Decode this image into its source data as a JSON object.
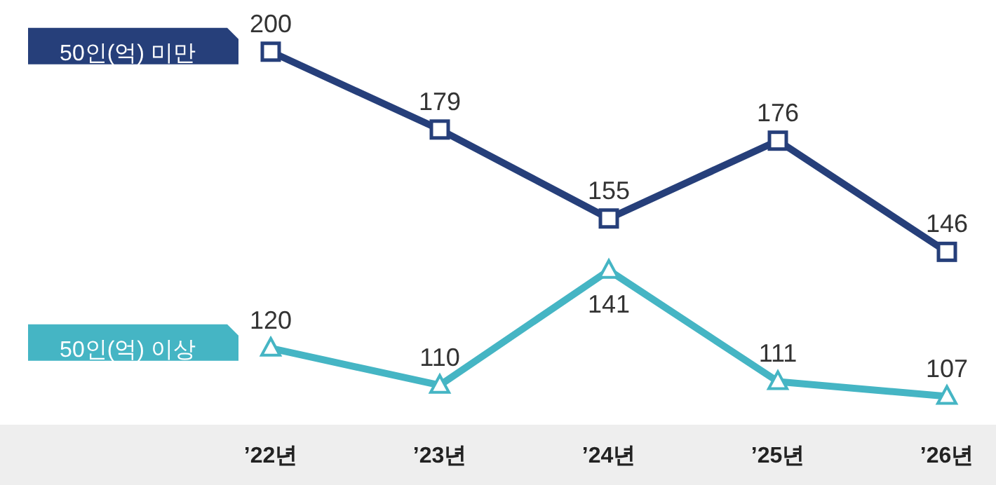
{
  "chart_data": {
    "type": "line",
    "categories": [
      "’22년",
      "’23년",
      "’24년",
      "’25년",
      "’26년"
    ],
    "series": [
      {
        "name": "50인(억) 미만",
        "color": "#263f7a",
        "marker": "square",
        "values": [
          200,
          179,
          155,
          176,
          146
        ]
      },
      {
        "name": "50인(억) 이상",
        "color": "#45b5c4",
        "marker": "triangle",
        "values": [
          120,
          110,
          141,
          111,
          107
        ]
      }
    ],
    "data_labels": true,
    "legend": "left",
    "tick_labels": "x"
  }
}
